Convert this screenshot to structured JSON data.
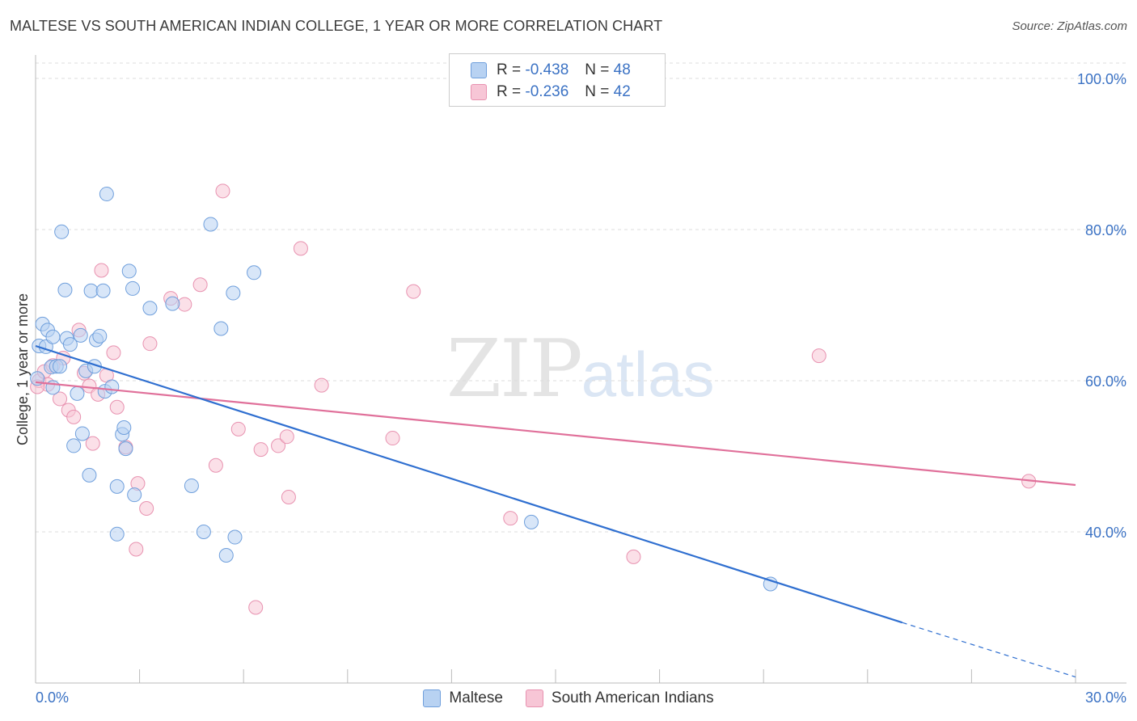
{
  "title": "MALTESE VS SOUTH AMERICAN INDIAN COLLEGE, 1 YEAR OR MORE CORRELATION CHART",
  "source": "Source: ZipAtlas.com",
  "watermark": {
    "zip": "ZIP",
    "atlas": "atlas"
  },
  "legend": {
    "maltese": {
      "r_label": "R = ",
      "r_value": "-0.438",
      "n_label": "N = ",
      "n_value": "48"
    },
    "south_american": {
      "r_label": "R = ",
      "r_value": "-0.236",
      "n_label": "N = ",
      "n_value": "42"
    }
  },
  "bottom_legend": {
    "maltese": "Maltese",
    "south_american": "South American Indians"
  },
  "colors": {
    "blue": "#3b72c4",
    "blue_fill": "#b8d2f2",
    "blue_line": "#2f6fd0",
    "pink": "#e0709a",
    "pink_fill": "#f7c6d6",
    "pink_line": "#e0709a"
  },
  "chart_data": {
    "type": "scatter",
    "title": "MALTESE VS SOUTH AMERICAN INDIAN COLLEGE, 1 YEAR OR MORE CORRELATION CHART",
    "xlabel": "",
    "ylabel": "College, 1 year or more",
    "xlim": [
      0,
      30
    ],
    "ylim": [
      20,
      102
    ],
    "x_tick_labels": [
      "0.0%",
      "30.0%"
    ],
    "y_ticks": [
      40,
      60,
      80,
      100
    ],
    "y_tick_labels": [
      "40.0%",
      "60.0%",
      "80.0%",
      "100.0%"
    ],
    "grid": true,
    "series": [
      {
        "name": "Maltese",
        "color": "#3b72c4",
        "points": [
          [
            0.1,
            64.6
          ],
          [
            0.2,
            67.5
          ],
          [
            0.3,
            64.5
          ],
          [
            0.35,
            66.7
          ],
          [
            0.45,
            61.8
          ],
          [
            0.5,
            65.8
          ],
          [
            0.5,
            59.1
          ],
          [
            0.6,
            61.9
          ],
          [
            0.7,
            61.9
          ],
          [
            0.75,
            79.7
          ],
          [
            0.85,
            72.0
          ],
          [
            0.9,
            65.6
          ],
          [
            1.0,
            64.8
          ],
          [
            1.1,
            51.4
          ],
          [
            1.2,
            58.3
          ],
          [
            1.3,
            66.0
          ],
          [
            1.35,
            53.0
          ],
          [
            1.45,
            61.3
          ],
          [
            1.55,
            47.5
          ],
          [
            1.6,
            71.9
          ],
          [
            1.7,
            61.9
          ],
          [
            1.75,
            65.4
          ],
          [
            1.85,
            65.9
          ],
          [
            1.95,
            71.9
          ],
          [
            2.0,
            58.6
          ],
          [
            2.05,
            84.7
          ],
          [
            2.2,
            59.2
          ],
          [
            2.35,
            39.7
          ],
          [
            2.35,
            46.0
          ],
          [
            2.5,
            52.9
          ],
          [
            2.55,
            53.8
          ],
          [
            2.6,
            51.0
          ],
          [
            2.7,
            74.5
          ],
          [
            2.8,
            72.2
          ],
          [
            2.85,
            44.9
          ],
          [
            3.3,
            69.6
          ],
          [
            3.95,
            70.2
          ],
          [
            4.5,
            46.1
          ],
          [
            4.85,
            40.0
          ],
          [
            5.05,
            80.7
          ],
          [
            5.35,
            66.9
          ],
          [
            5.5,
            36.9
          ],
          [
            5.7,
            71.6
          ],
          [
            5.75,
            39.3
          ],
          [
            6.3,
            74.3
          ],
          [
            14.3,
            41.3
          ],
          [
            21.2,
            33.1
          ],
          [
            0.05,
            60.3
          ]
        ]
      },
      {
        "name": "South American Indians",
        "color": "#e0709a",
        "points": [
          [
            0.1,
            60.0
          ],
          [
            0.25,
            61.2
          ],
          [
            0.35,
            59.5
          ],
          [
            0.5,
            62.0
          ],
          [
            0.7,
            57.6
          ],
          [
            0.8,
            63.0
          ],
          [
            0.95,
            56.1
          ],
          [
            1.1,
            55.2
          ],
          [
            1.25,
            66.7
          ],
          [
            1.4,
            61.0
          ],
          [
            1.55,
            59.3
          ],
          [
            1.65,
            51.7
          ],
          [
            1.8,
            58.2
          ],
          [
            1.9,
            74.6
          ],
          [
            2.05,
            60.7
          ],
          [
            2.25,
            63.7
          ],
          [
            2.35,
            56.5
          ],
          [
            2.6,
            51.2
          ],
          [
            2.9,
            37.7
          ],
          [
            2.95,
            46.4
          ],
          [
            3.2,
            43.1
          ],
          [
            3.3,
            64.9
          ],
          [
            3.9,
            70.9
          ],
          [
            4.3,
            70.1
          ],
          [
            4.75,
            72.7
          ],
          [
            5.2,
            48.8
          ],
          [
            5.4,
            85.1
          ],
          [
            5.85,
            53.6
          ],
          [
            6.35,
            30.0
          ],
          [
            6.5,
            50.9
          ],
          [
            7.0,
            51.4
          ],
          [
            7.25,
            52.6
          ],
          [
            7.3,
            44.6
          ],
          [
            7.65,
            77.5
          ],
          [
            8.25,
            59.4
          ],
          [
            10.3,
            52.4
          ],
          [
            10.9,
            71.8
          ],
          [
            13.7,
            41.8
          ],
          [
            17.25,
            36.7
          ],
          [
            22.6,
            63.3
          ],
          [
            28.65,
            46.7
          ],
          [
            0.05,
            59.2
          ]
        ]
      }
    ],
    "trend_lines": [
      {
        "series": "Maltese",
        "x_start": 0,
        "y_start": 64.6,
        "x_end": 25.0,
        "y_end": 28.0,
        "dashed_to_x": 30,
        "dashed_to_y": 20.8
      },
      {
        "series": "South American Indians",
        "x_start": 0,
        "y_start": 59.8,
        "x_end": 30,
        "y_end": 46.2
      }
    ]
  }
}
